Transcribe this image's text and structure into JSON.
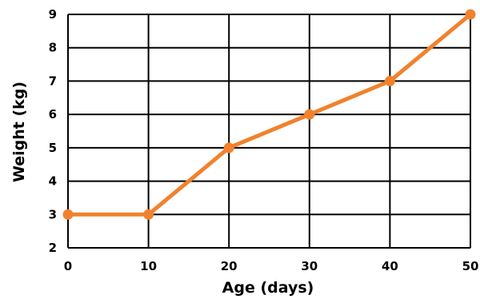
{
  "chart_data": {
    "type": "line",
    "xlabel": "Age (days)",
    "ylabel": "Weight (kg)",
    "x": [
      0,
      10,
      20,
      30,
      40,
      50
    ],
    "y": [
      3,
      3,
      5,
      6,
      7,
      9
    ],
    "xlim": [
      0,
      50
    ],
    "ylim": [
      2,
      9
    ],
    "x_ticks": [
      "0",
      "10",
      "20",
      "30",
      "40",
      "50"
    ],
    "y_ticks": [
      "2",
      "3",
      "4",
      "5",
      "6",
      "7",
      "8",
      "9"
    ],
    "grid": true,
    "line_color": "#f0822e",
    "grid_color": "#000000"
  }
}
